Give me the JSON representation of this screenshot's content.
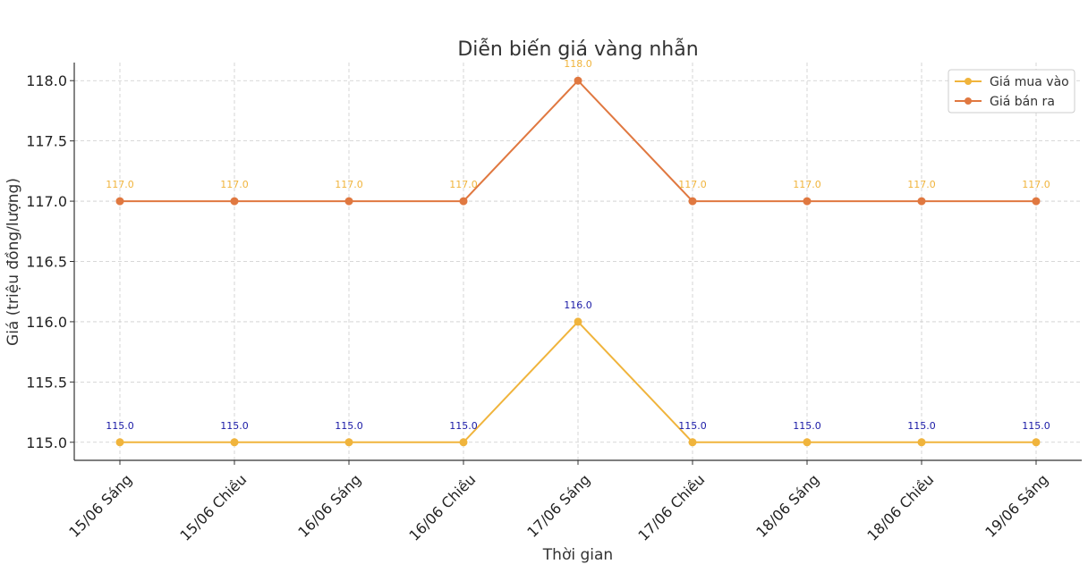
{
  "chart_data": {
    "type": "line",
    "title": "Diễn biến giá vàng nhẫn",
    "xlabel": "Thời gian",
    "ylabel": "Giá (triệu đồng/lượng)",
    "categories": [
      "15/06 Sáng",
      "15/06 Chiều",
      "16/06 Sáng",
      "16/06 Chiều",
      "17/06 Sáng",
      "17/06 Chiều",
      "18/06 Sáng",
      "18/06 Chiều",
      "19/06 Sáng"
    ],
    "ylim": [
      114.85,
      118.15
    ],
    "yticks": [
      "115.0",
      "115.5",
      "116.0",
      "116.5",
      "117.0",
      "117.5",
      "118.0"
    ],
    "grid": true,
    "legend_position": "top-right",
    "series": [
      {
        "name": "Giá mua vào",
        "values": [
          115.0,
          115.0,
          115.0,
          115.0,
          116.0,
          115.0,
          115.0,
          115.0,
          115.0
        ],
        "labels": [
          "115.0",
          "115.0",
          "115.0",
          "115.0",
          "116.0",
          "115.0",
          "115.0",
          "115.0",
          "115.0"
        ],
        "color": "#f0b43c",
        "label_color": "#1a1aa6"
      },
      {
        "name": "Giá bán ra",
        "values": [
          117.0,
          117.0,
          117.0,
          117.0,
          118.0,
          117.0,
          117.0,
          117.0,
          117.0
        ],
        "labels": [
          "117.0",
          "117.0",
          "117.0",
          "117.0",
          "118.0",
          "117.0",
          "117.0",
          "117.0",
          "117.0"
        ],
        "color": "#e07840",
        "label_color": "#f0b43c"
      }
    ]
  }
}
